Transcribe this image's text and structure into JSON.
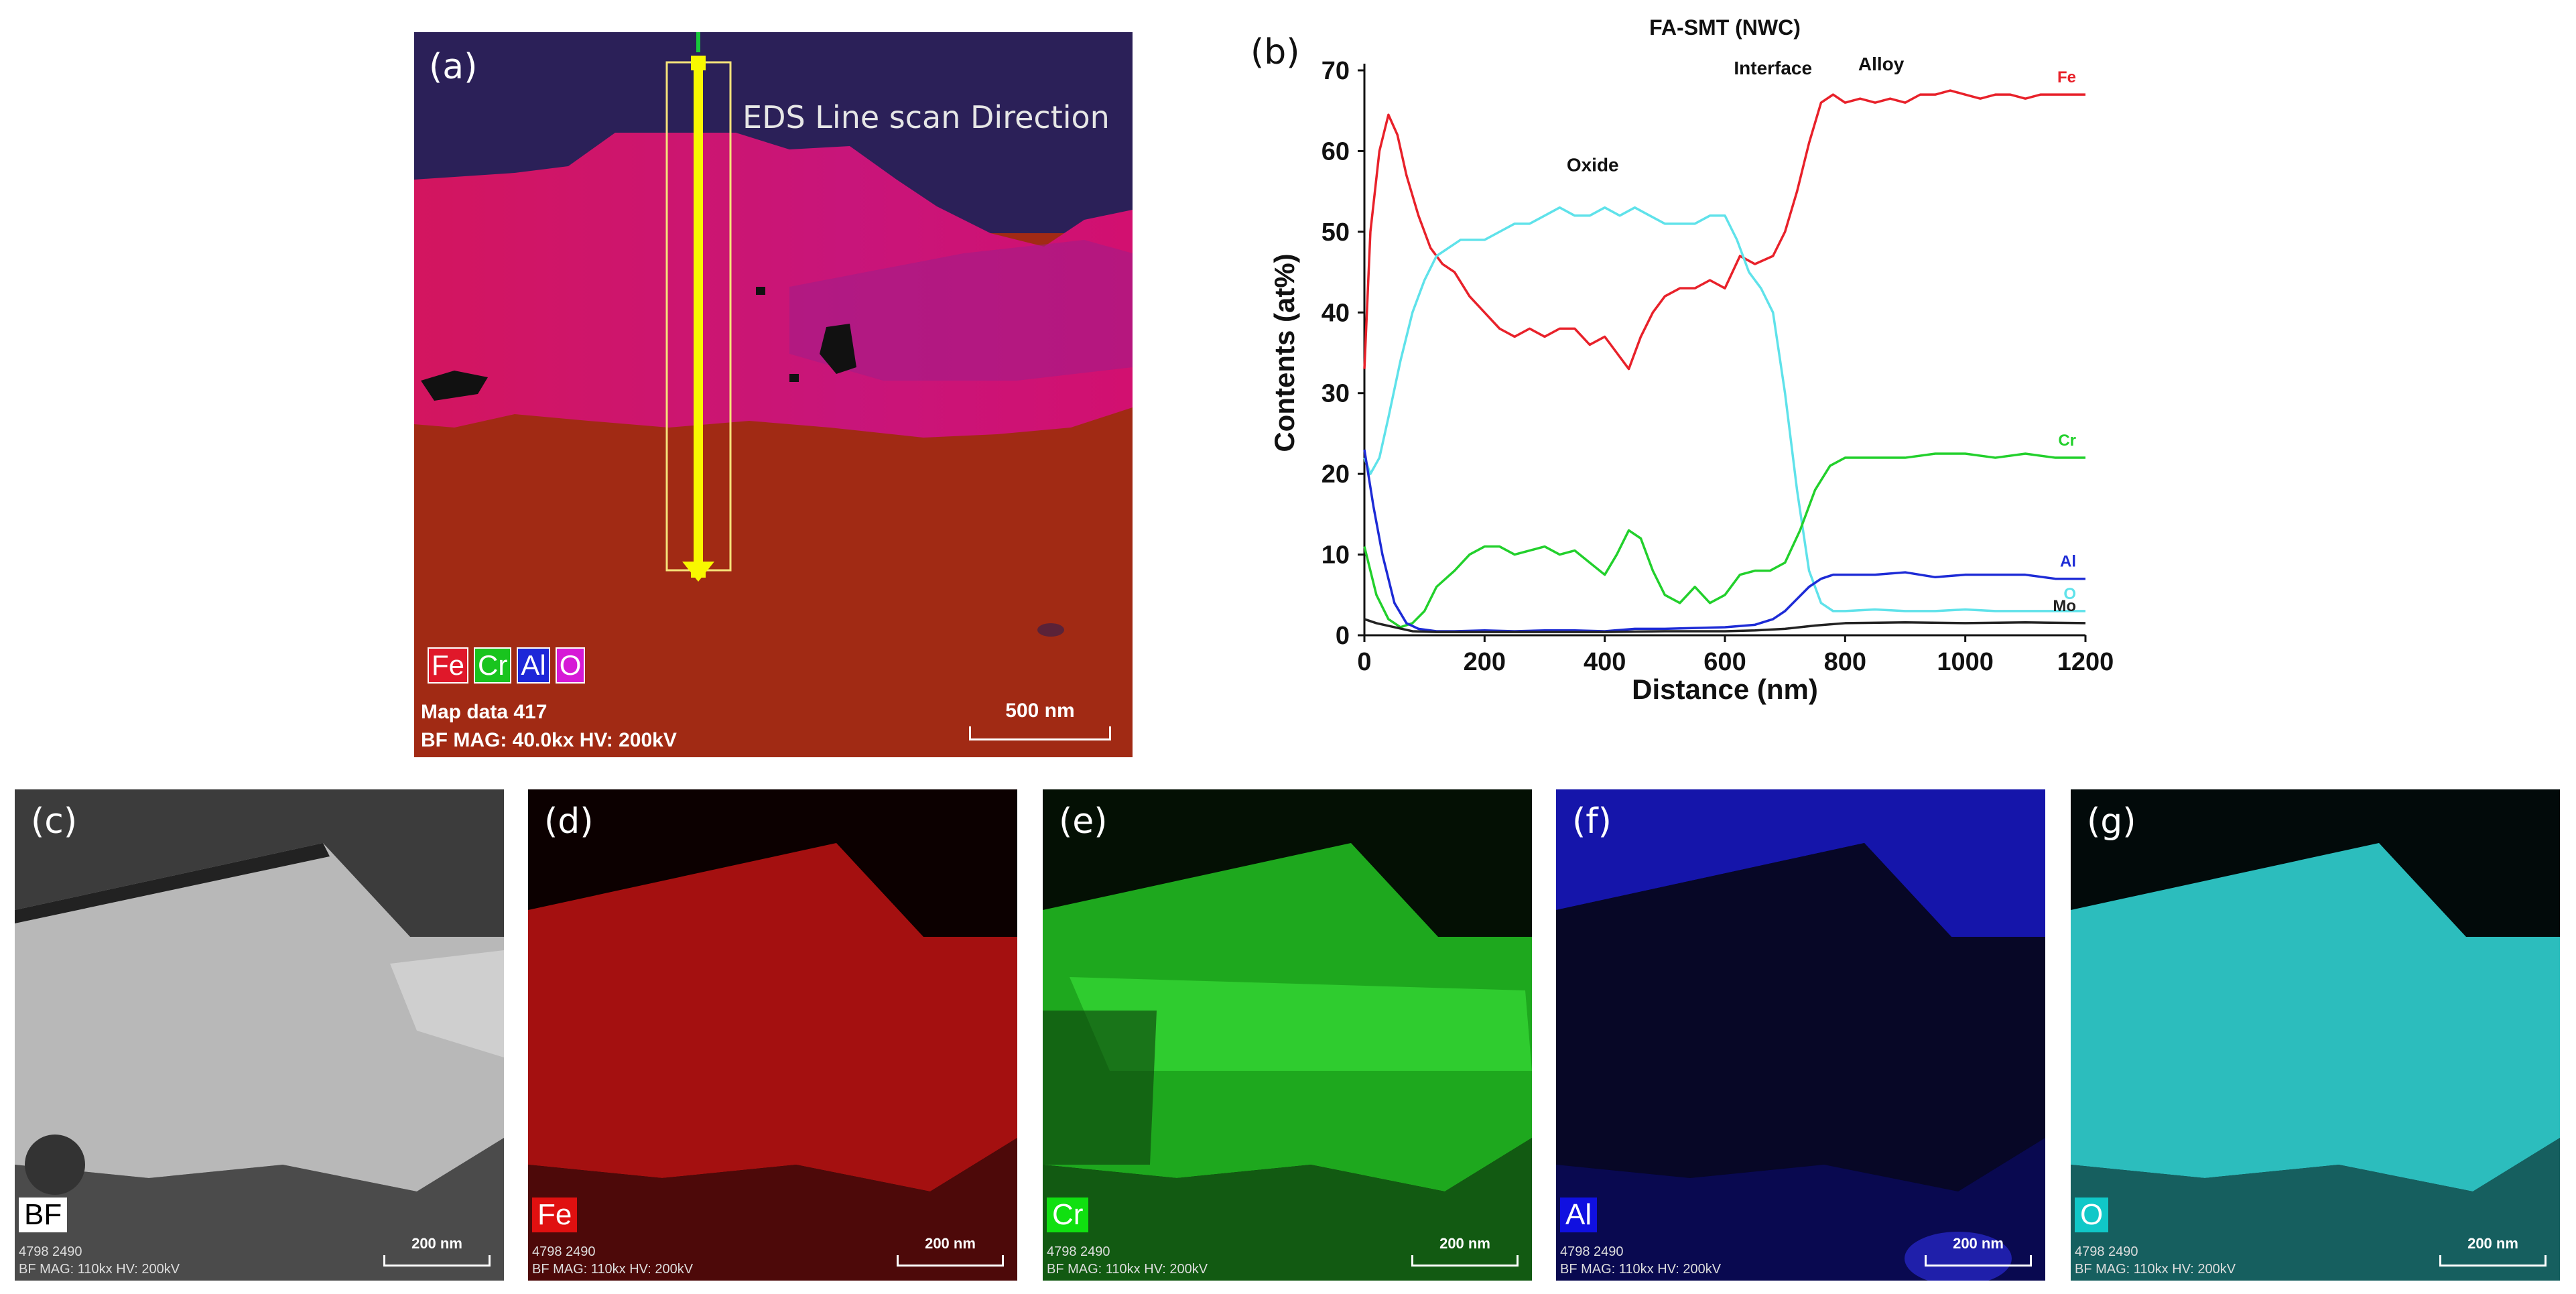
{
  "panel_a": {
    "label": "(a)",
    "direction_label": "EDS Line scan Direction",
    "legend": [
      {
        "text": "Fe",
        "color": "#e0182a"
      },
      {
        "text": "Cr",
        "color": "#19c41e"
      },
      {
        "text": "Al",
        "color": "#1d27d8"
      },
      {
        "text": "O",
        "color": "#d61ad6"
      }
    ],
    "map_data": "Map data 417",
    "meta": "BF  MAG: 40.0kx  HV: 200kV",
    "scale": "500 nm"
  },
  "panel_b": {
    "label": "(b)"
  },
  "chart_data": {
    "type": "line",
    "title": "FA-SMT (NWC)",
    "xlabel": "Distance (nm)",
    "ylabel": "Contents (at%)",
    "xlim": [
      0,
      1200
    ],
    "ylim": [
      0,
      70
    ],
    "xticks": [
      0,
      200,
      400,
      600,
      800,
      1000,
      1200
    ],
    "yticks": [
      0,
      10,
      20,
      30,
      40,
      50,
      60,
      70
    ],
    "annotations": [
      {
        "text": "Oxide",
        "x": 380,
        "y": 57.5
      },
      {
        "text": "Interface",
        "x": 680,
        "y": 69.5
      },
      {
        "text": "Alloy",
        "x": 860,
        "y": 70
      }
    ],
    "series": [
      {
        "name": "Fe",
        "color": "#e8212a",
        "x": [
          0,
          10,
          25,
          40,
          55,
          70,
          90,
          110,
          130,
          150,
          175,
          200,
          225,
          250,
          275,
          300,
          325,
          350,
          375,
          400,
          420,
          440,
          460,
          480,
          500,
          525,
          550,
          575,
          600,
          625,
          650,
          680,
          700,
          720,
          740,
          760,
          780,
          800,
          825,
          850,
          875,
          900,
          925,
          950,
          975,
          1000,
          1025,
          1050,
          1075,
          1100,
          1125,
          1150,
          1175,
          1200
        ],
        "values": [
          33,
          50,
          60,
          64.5,
          62,
          57,
          52,
          48,
          46,
          45,
          42,
          40,
          38,
          37,
          38,
          37,
          38,
          38,
          36,
          37,
          35,
          33,
          37,
          40,
          42,
          43,
          43,
          44,
          43,
          47,
          46,
          47,
          50,
          55,
          61,
          66,
          67,
          66,
          66.5,
          66,
          66.5,
          66,
          67,
          67,
          67.5,
          67,
          66.5,
          67,
          67,
          66.5,
          67,
          67,
          67,
          67
        ]
      },
      {
        "name": "O",
        "color": "#5fe2ea",
        "x": [
          0,
          10,
          25,
          40,
          60,
          80,
          100,
          120,
          140,
          160,
          180,
          200,
          225,
          250,
          275,
          300,
          325,
          350,
          375,
          400,
          425,
          450,
          475,
          500,
          525,
          550,
          575,
          600,
          620,
          640,
          660,
          680,
          700,
          720,
          740,
          760,
          780,
          800,
          850,
          900,
          950,
          1000,
          1050,
          1100,
          1150,
          1200
        ],
        "values": [
          22,
          20,
          22,
          27,
          34,
          40,
          44,
          47,
          48,
          49,
          49,
          49,
          50,
          51,
          51,
          52,
          53,
          52,
          52,
          53,
          52,
          53,
          52,
          51,
          51,
          51,
          52,
          52,
          49,
          45,
          43,
          40,
          30,
          18,
          8,
          4,
          3,
          3,
          3.2,
          3,
          3,
          3.2,
          3,
          3,
          3,
          3
        ]
      },
      {
        "name": "Cr",
        "color": "#22d02c",
        "x": [
          0,
          10,
          20,
          40,
          60,
          80,
          100,
          120,
          150,
          175,
          200,
          225,
          250,
          275,
          300,
          325,
          350,
          375,
          400,
          420,
          440,
          460,
          480,
          500,
          525,
          550,
          575,
          600,
          625,
          650,
          675,
          700,
          725,
          750,
          775,
          800,
          850,
          900,
          950,
          1000,
          1050,
          1100,
          1150,
          1200
        ],
        "values": [
          11,
          8,
          5,
          2,
          1,
          1.5,
          3,
          6,
          8,
          10,
          11,
          11,
          10,
          10.5,
          11,
          10,
          10.5,
          9,
          7.5,
          10,
          13,
          12,
          8,
          5,
          4,
          6,
          4,
          5,
          7.5,
          8,
          8,
          9,
          13,
          18,
          21,
          22,
          22,
          22,
          22.5,
          22.5,
          22,
          22.5,
          22,
          22
        ]
      },
      {
        "name": "Al",
        "color": "#1d2bd6",
        "x": [
          0,
          15,
          30,
          50,
          70,
          90,
          120,
          150,
          200,
          250,
          300,
          350,
          400,
          450,
          500,
          550,
          600,
          650,
          680,
          700,
          720,
          740,
          760,
          780,
          800,
          850,
          900,
          950,
          1000,
          1050,
          1100,
          1150,
          1200
        ],
        "values": [
          23,
          16,
          10,
          4,
          1.5,
          0.8,
          0.5,
          0.5,
          0.6,
          0.5,
          0.6,
          0.6,
          0.5,
          0.8,
          0.8,
          0.9,
          1,
          1.3,
          2,
          3,
          4.5,
          6,
          7,
          7.5,
          7.5,
          7.5,
          7.8,
          7.2,
          7.5,
          7.5,
          7.5,
          7,
          7
        ]
      },
      {
        "name": "Mo",
        "color": "#222222",
        "x": [
          0,
          20,
          50,
          80,
          120,
          200,
          300,
          400,
          500,
          600,
          650,
          700,
          750,
          800,
          900,
          1000,
          1100,
          1200
        ],
        "values": [
          2,
          1.5,
          1,
          0.5,
          0.4,
          0.4,
          0.4,
          0.4,
          0.5,
          0.5,
          0.6,
          0.8,
          1.2,
          1.5,
          1.6,
          1.5,
          1.6,
          1.5
        ]
      }
    ]
  },
  "maps": [
    {
      "label": "(c)",
      "chip": "BF",
      "chip_bg": "#ffffff",
      "chip_fg": "#000000",
      "id": "4798 2490",
      "meta": "BF  MAG: 110kx  HV: 200kV",
      "scale": "200 nm"
    },
    {
      "label": "(d)",
      "chip": "Fe",
      "chip_bg": "#e01010",
      "chip_fg": "#ffffff",
      "id": "4798 2490",
      "meta": "BF  MAG: 110kx  HV: 200kV",
      "scale": "200 nm"
    },
    {
      "label": "(e)",
      "chip": "Cr",
      "chip_bg": "#10e010",
      "chip_fg": "#ffffff",
      "id": "4798 2490",
      "meta": "BF  MAG: 110kx  HV: 200kV",
      "scale": "200 nm"
    },
    {
      "label": "(f)",
      "chip": "Al",
      "chip_bg": "#1010e0",
      "chip_fg": "#ffffff",
      "id": "4798 2490",
      "meta": "BF  MAG: 110kx  HV: 200kV",
      "scale": "200 nm"
    },
    {
      "label": "(g)",
      "chip": "O",
      "chip_bg": "#10c8c8",
      "chip_fg": "#ffffff",
      "id": "4798 2490",
      "meta": "BF  MAG: 110kx  HV: 200kV",
      "scale": "200 nm"
    }
  ]
}
